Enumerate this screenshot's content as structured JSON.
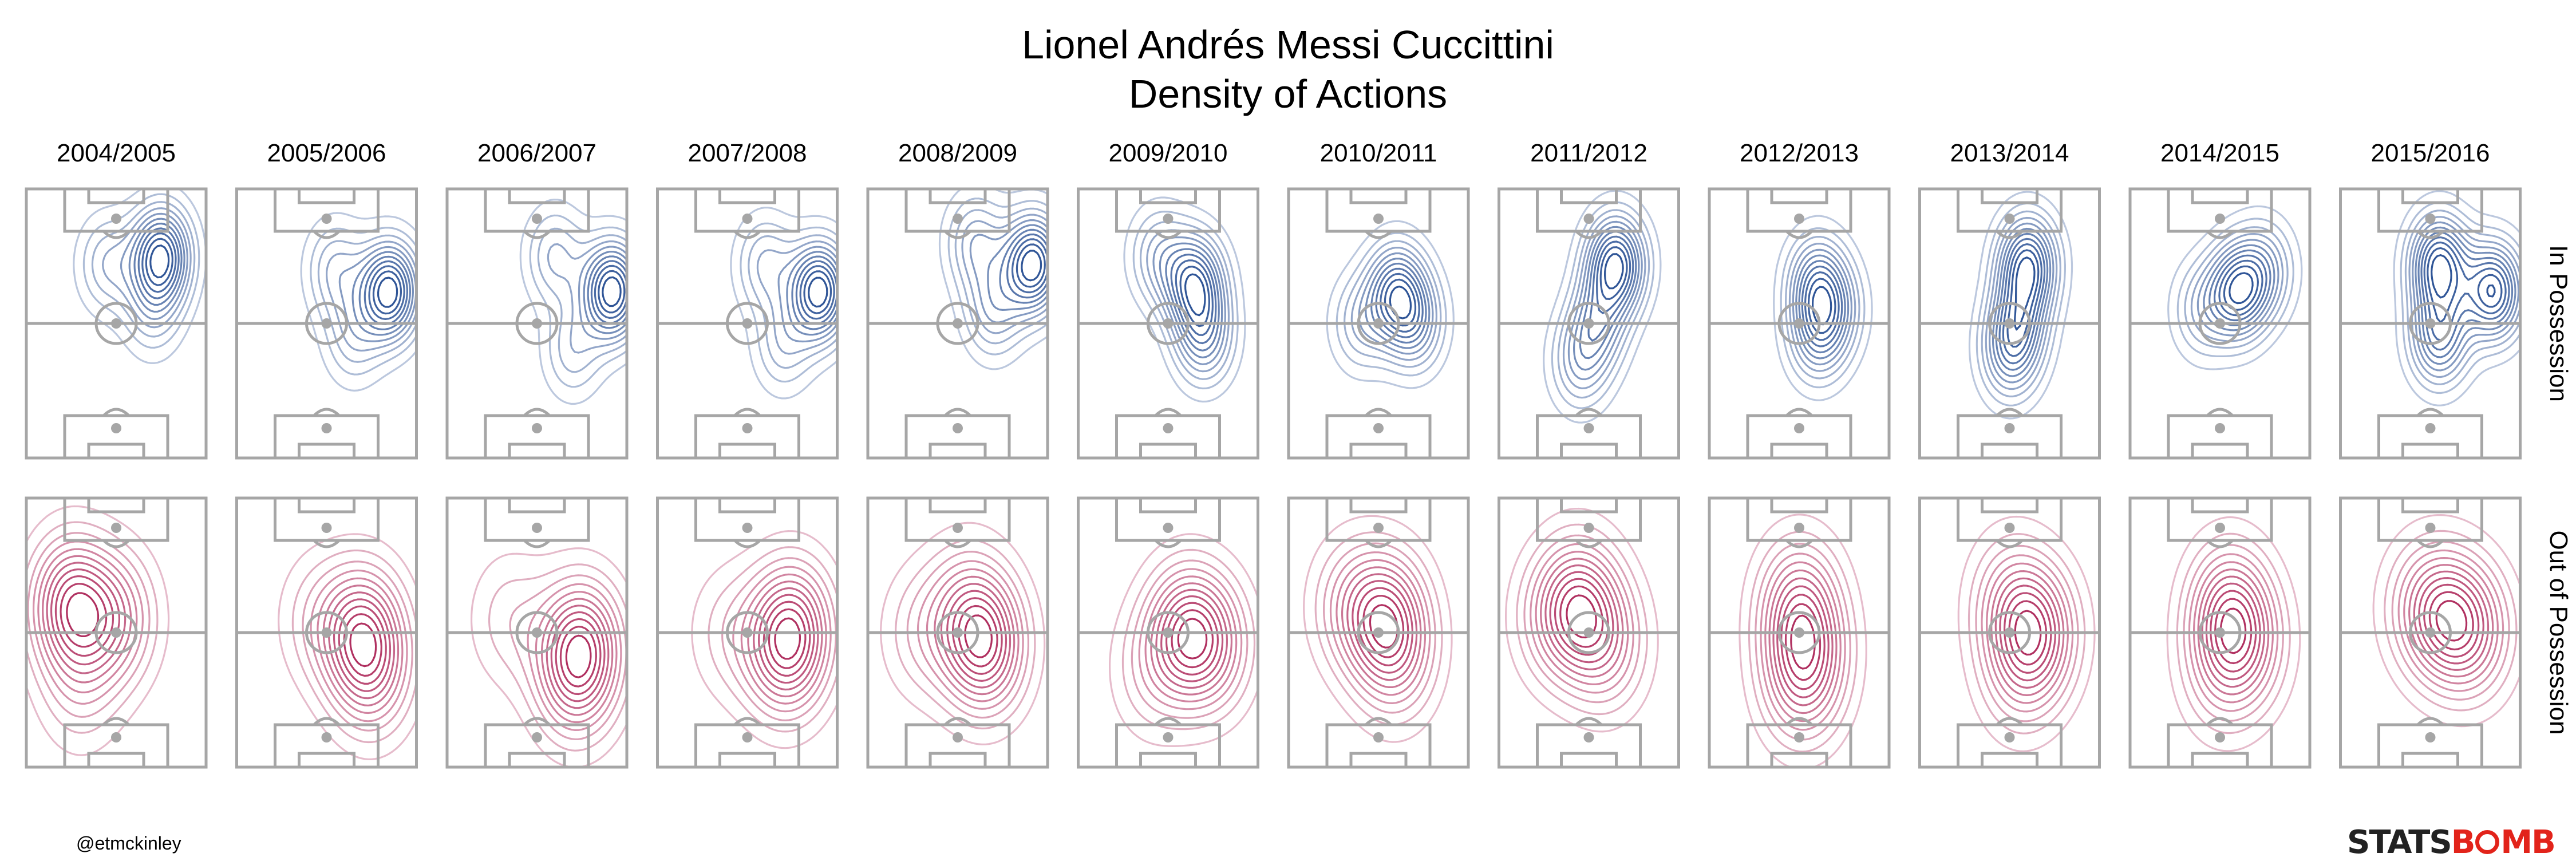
{
  "chart_data": {
    "type": "contour",
    "title": "Lionel Andrés Messi Cuccittini",
    "subtitle": "Density of Actions",
    "seasons": [
      "2004/2005",
      "2005/2006",
      "2006/2007",
      "2007/2008",
      "2008/2009",
      "2009/2010",
      "2010/2011",
      "2011/2012",
      "2012/2013",
      "2013/2014",
      "2014/2015",
      "2015/2016"
    ],
    "rows": [
      {
        "name": "In Possession",
        "color": "#2f5597",
        "peaks": [
          [
            [
              0.75,
              0.75,
              1.0
            ],
            [
              0.45,
              0.72,
              0.35
            ],
            [
              0.7,
              0.55,
              0.3
            ]
          ],
          [
            [
              0.85,
              0.62,
              1.0
            ],
            [
              0.55,
              0.7,
              0.35
            ],
            [
              0.65,
              0.45,
              0.3
            ]
          ],
          [
            [
              0.92,
              0.62,
              1.0
            ],
            [
              0.6,
              0.75,
              0.35
            ],
            [
              0.7,
              0.4,
              0.3
            ]
          ],
          [
            [
              0.9,
              0.62,
              1.0
            ],
            [
              0.6,
              0.72,
              0.35
            ],
            [
              0.7,
              0.42,
              0.3
            ]
          ],
          [
            [
              0.92,
              0.72,
              1.0
            ],
            [
              0.6,
              0.8,
              0.4
            ],
            [
              0.7,
              0.55,
              0.4
            ]
          ],
          [
            [
              0.65,
              0.65,
              0.9
            ],
            [
              0.7,
              0.45,
              0.6
            ],
            [
              0.45,
              0.75,
              0.4
            ]
          ],
          [
            [
              0.6,
              0.62,
              0.9
            ],
            [
              0.7,
              0.5,
              0.6
            ],
            [
              0.4,
              0.5,
              0.4
            ]
          ],
          [
            [
              0.65,
              0.72,
              1.0
            ],
            [
              0.55,
              0.5,
              0.5
            ],
            [
              0.45,
              0.35,
              0.4
            ]
          ],
          [
            [
              0.6,
              0.65,
              0.9
            ],
            [
              0.6,
              0.45,
              0.7
            ],
            [
              0.7,
              0.55,
              0.5
            ]
          ],
          [
            [
              0.6,
              0.72,
              1.0
            ],
            [
              0.55,
              0.5,
              0.6
            ],
            [
              0.5,
              0.38,
              0.5
            ]
          ],
          [
            [
              0.6,
              0.62,
              1.0
            ],
            [
              0.75,
              0.7,
              0.5
            ],
            [
              0.4,
              0.55,
              0.4
            ]
          ],
          [
            [
              0.55,
              0.72,
              0.8
            ],
            [
              0.85,
              0.62,
              0.8
            ],
            [
              0.55,
              0.45,
              0.6
            ]
          ]
        ]
      },
      {
        "name": "Out of Possession",
        "color": "#b03060",
        "peaks": [
          [
            [
              0.25,
              0.6,
              1.0
            ],
            [
              0.5,
              0.55,
              0.6
            ],
            [
              0.3,
              0.3,
              0.3
            ]
          ],
          [
            [
              0.7,
              0.5,
              1.0
            ],
            [
              0.75,
              0.35,
              0.6
            ],
            [
              0.45,
              0.55,
              0.3
            ]
          ],
          [
            [
              0.75,
              0.45,
              1.0
            ],
            [
              0.7,
              0.32,
              0.5
            ],
            [
              0.35,
              0.55,
              0.3
            ]
          ],
          [
            [
              0.75,
              0.52,
              1.0
            ],
            [
              0.7,
              0.4,
              0.6
            ],
            [
              0.4,
              0.5,
              0.3
            ]
          ],
          [
            [
              0.65,
              0.45,
              1.0
            ],
            [
              0.55,
              0.6,
              0.4
            ],
            [
              0.3,
              0.5,
              0.3
            ]
          ],
          [
            [
              0.6,
              0.5,
              1.0
            ],
            [
              0.75,
              0.45,
              0.6
            ],
            [
              0.4,
              0.35,
              0.3
            ]
          ],
          [
            [
              0.55,
              0.55,
              1.0
            ],
            [
              0.35,
              0.6,
              0.5
            ],
            [
              0.6,
              0.4,
              0.5
            ]
          ],
          [
            [
              0.45,
              0.6,
              1.0
            ],
            [
              0.6,
              0.45,
              0.6
            ],
            [
              0.3,
              0.55,
              0.4
            ]
          ],
          [
            [
              0.5,
              0.6,
              1.0
            ],
            [
              0.55,
              0.4,
              0.8
            ],
            [
              0.5,
              0.3,
              0.5
            ]
          ],
          [
            [
              0.65,
              0.5,
              1.0
            ],
            [
              0.5,
              0.62,
              0.5
            ],
            [
              0.55,
              0.35,
              0.4
            ]
          ],
          [
            [
              0.55,
              0.58,
              1.0
            ],
            [
              0.65,
              0.45,
              0.6
            ],
            [
              0.5,
              0.35,
              0.4
            ]
          ],
          [
            [
              0.6,
              0.55,
              1.0
            ],
            [
              0.75,
              0.5,
              0.7
            ],
            [
              0.45,
              0.6,
              0.5
            ]
          ]
        ]
      }
    ],
    "legend": "none",
    "grid": false
  },
  "credit": "@etmckinley",
  "logo": {
    "part1": "STATS",
    "part2a": "B",
    "part2b": "MB"
  }
}
